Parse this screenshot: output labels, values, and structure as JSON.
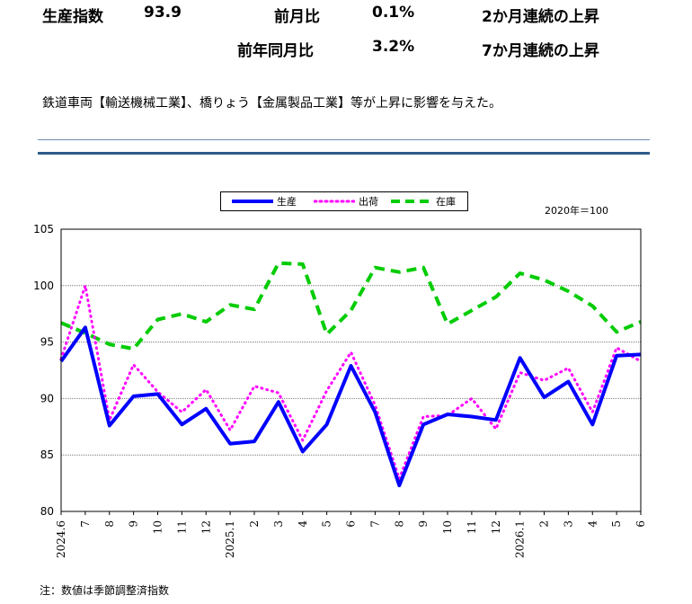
{
  "summary": {
    "label": "生産指数",
    "index": "93.9",
    "rows": [
      {
        "label": "前月比",
        "value": "0.1%",
        "note": "2か月連続の上昇"
      },
      {
        "label": "前年同月比",
        "value": "3.2%",
        "note": "7か月連続の上昇"
      }
    ]
  },
  "description": "鉄道車両【輸送機械工業】、橋りょう【金属製品工業】等が上昇に影響を与えた。",
  "unit_note": "2020年＝100",
  "footnote": "注：数値は季節調整済指数",
  "colors": {
    "production": "#0000ff",
    "shipment": "#ff00ff",
    "inventory": "#00cc00",
    "grid": "#777777"
  },
  "chart_data": {
    "type": "line",
    "x": [
      "2024.6",
      "7",
      "8",
      "9",
      "10",
      "11",
      "12",
      "2025.1",
      "2",
      "3",
      "4",
      "5",
      "6",
      "7",
      "8",
      "9",
      "10",
      "11",
      "12",
      "2026.1",
      "2",
      "3",
      "4",
      "5",
      "6"
    ],
    "ylim": [
      80,
      105
    ],
    "yticks": [
      80,
      85,
      90,
      95,
      100,
      105
    ],
    "grid": true,
    "legend_position": "top",
    "series": [
      {
        "name": "生産",
        "style": "solid",
        "color": "#0000ff",
        "values": [
          93.3,
          96.3,
          87.6,
          90.2,
          90.4,
          87.7,
          89.1,
          86.0,
          86.2,
          89.7,
          85.3,
          87.7,
          92.9,
          88.8,
          82.3,
          87.7,
          88.6,
          88.4,
          88.1,
          93.6,
          90.1,
          91.5,
          87.7,
          93.8,
          93.9
        ]
      },
      {
        "name": "出荷",
        "style": "dotted",
        "color": "#ff00ff",
        "values": [
          93.5,
          100.0,
          88.1,
          93.0,
          90.6,
          88.8,
          90.8,
          87.2,
          91.1,
          90.5,
          86.3,
          90.7,
          94.1,
          89.4,
          82.9,
          88.4,
          88.5,
          90.0,
          87.3,
          92.3,
          91.6,
          92.7,
          88.8,
          94.5,
          93.3
        ]
      },
      {
        "name": "在庫",
        "style": "dashed",
        "color": "#00cc00",
        "values": [
          96.7,
          95.8,
          94.8,
          94.4,
          97.0,
          97.5,
          96.8,
          98.3,
          97.9,
          102.0,
          101.9,
          95.7,
          97.8,
          101.6,
          101.2,
          101.6,
          96.6,
          97.8,
          99.0,
          101.1,
          100.5,
          99.5,
          98.2,
          95.9,
          96.8
        ]
      }
    ]
  }
}
